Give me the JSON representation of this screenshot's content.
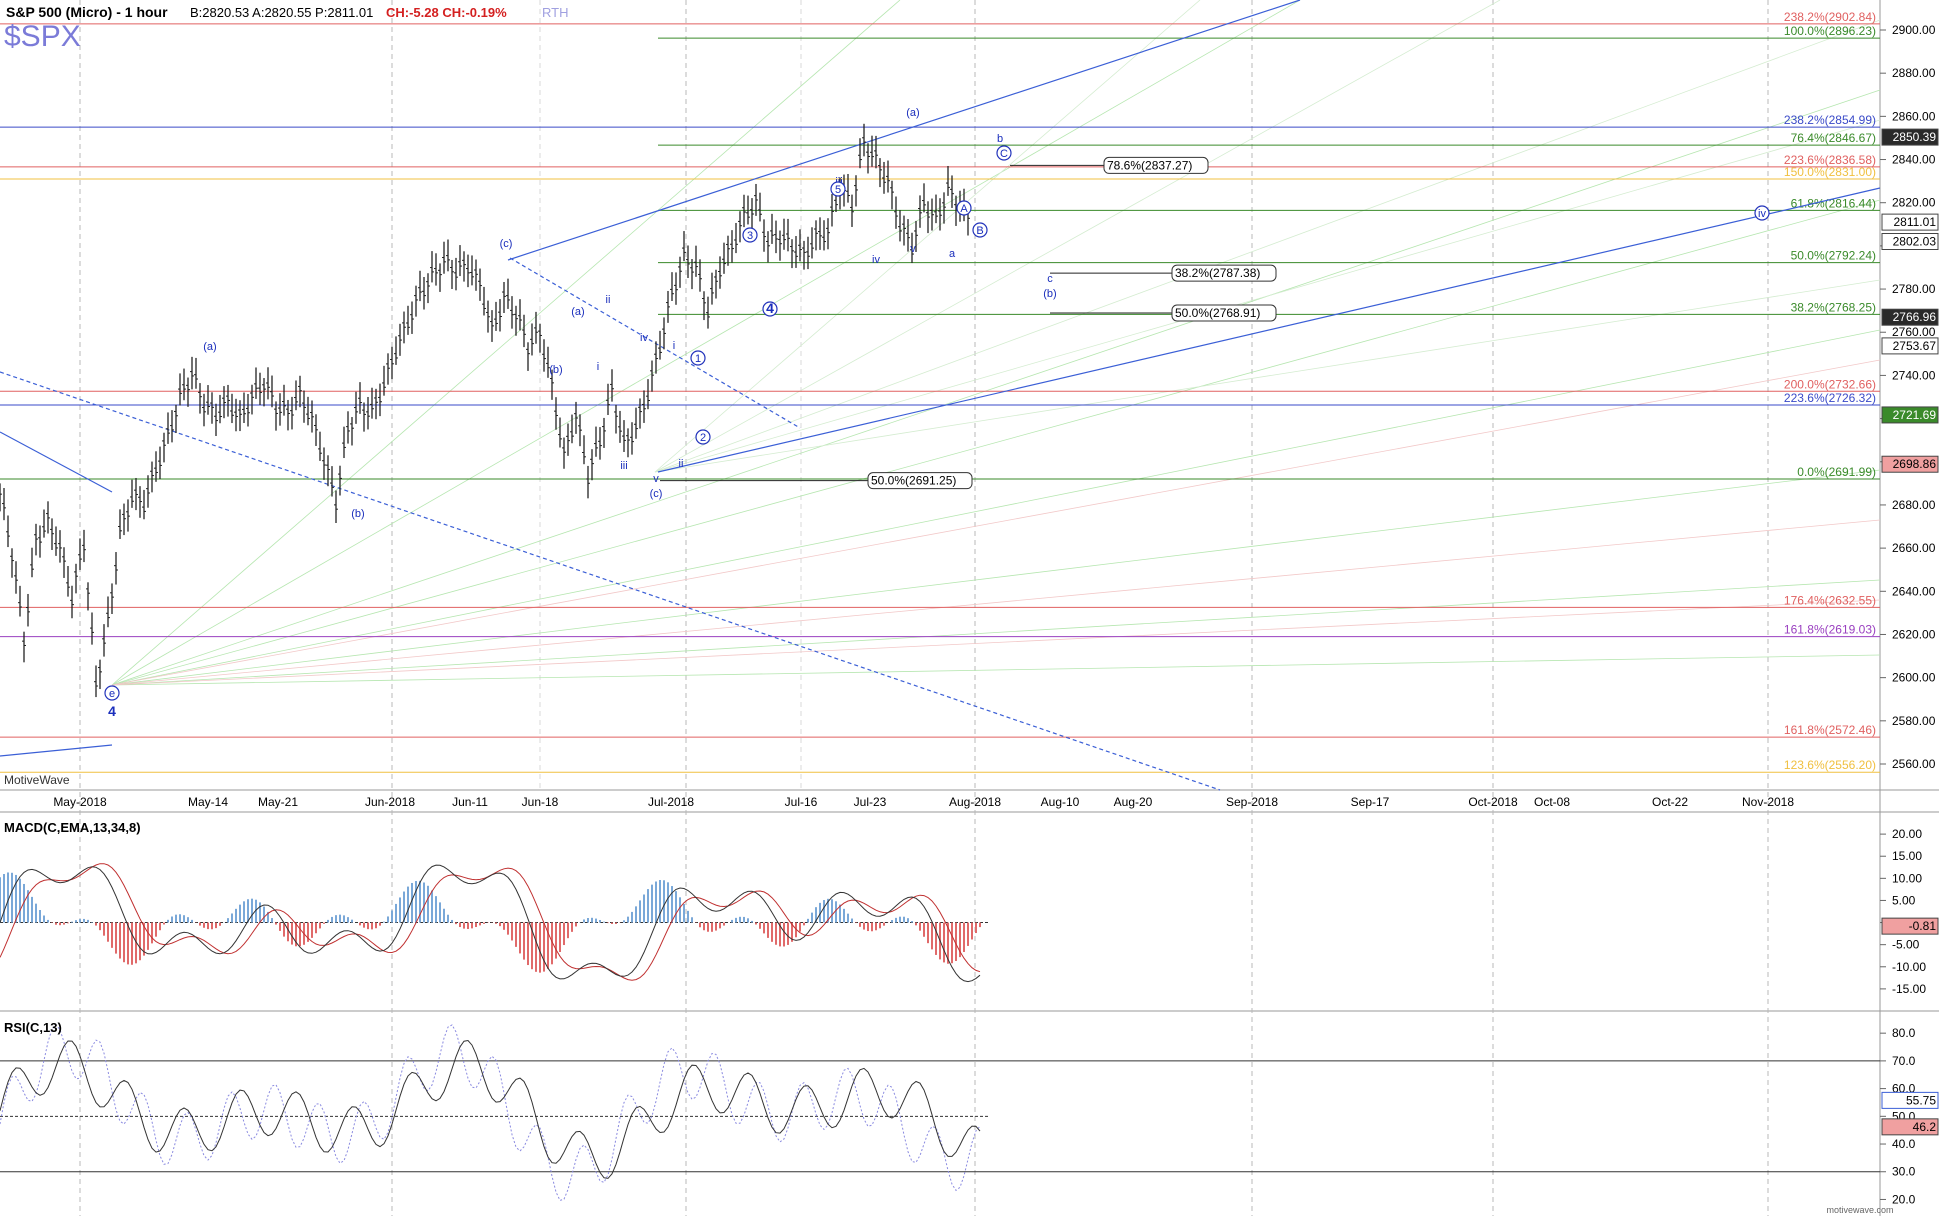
{
  "header": {
    "instrument": "S&P 500 (Micro) - 1 hour",
    "quote": "B:2820.53  A:2820.55  P:2811.01",
    "change": "CH:-5.28  CH:-0.19%",
    "session": "RTH",
    "symbol": "$SPX",
    "watermark": "MotiveWave",
    "footer_brand": "motivewave.com"
  },
  "chart_data": [
    {
      "type": "candlestick",
      "title": "S&P 500 (Micro) - 1 hour",
      "ylim": [
        2550,
        2910
      ],
      "y_ticks": [
        2560,
        2580,
        2600,
        2620,
        2640,
        2660,
        2680,
        2700,
        2720,
        2740,
        2760,
        2780,
        2800,
        2820,
        2840,
        2860,
        2880,
        2900
      ],
      "x_labels": [
        "May-2018",
        "May-14",
        "May-21",
        "Jun-2018",
        "Jun-11",
        "Jun-18",
        "Jul-2018",
        "Jul-16",
        "Jul-23",
        "Aug-2018",
        "Aug-10",
        "Aug-20",
        "Sep-2018",
        "Sep-17",
        "Oct-2018",
        "Oct-08",
        "Oct-22",
        "Nov-2018"
      ],
      "price_path": [
        [
          0,
          2686
        ],
        [
          3,
          2658
        ],
        [
          6,
          2618
        ],
        [
          9,
          2664
        ],
        [
          12,
          2672
        ],
        [
          15,
          2660
        ],
        [
          18,
          2637
        ],
        [
          21,
          2663
        ],
        [
          24,
          2597
        ],
        [
          27,
          2626
        ],
        [
          30,
          2667
        ],
        [
          33,
          2684
        ],
        [
          36,
          2681
        ],
        [
          39,
          2697
        ],
        [
          42,
          2712
        ],
        [
          45,
          2730
        ],
        [
          48,
          2741
        ],
        [
          51,
          2727
        ],
        [
          54,
          2722
        ],
        [
          57,
          2728
        ],
        [
          60,
          2720
        ],
        [
          63,
          2730
        ],
        [
          66,
          2737
        ],
        [
          69,
          2726
        ],
        [
          72,
          2723
        ],
        [
          75,
          2731
        ],
        [
          78,
          2720
        ],
        [
          81,
          2701
        ],
        [
          84,
          2682
        ],
        [
          87,
          2716
        ],
        [
          90,
          2726
        ],
        [
          93,
          2723
        ],
        [
          96,
          2736
        ],
        [
          99,
          2752
        ],
        [
          102,
          2765
        ],
        [
          105,
          2778
        ],
        [
          108,
          2786
        ],
        [
          111,
          2793
        ],
        [
          114,
          2789
        ],
        [
          117,
          2791
        ],
        [
          120,
          2782
        ],
        [
          123,
          2761
        ],
        [
          126,
          2776
        ],
        [
          129,
          2769
        ],
        [
          132,
          2754
        ],
        [
          135,
          2760
        ],
        [
          138,
          2735
        ],
        [
          141,
          2703
        ],
        [
          144,
          2722
        ],
        [
          147,
          2694
        ],
        [
          150,
          2710
        ],
        [
          153,
          2733
        ],
        [
          156,
          2708
        ],
        [
          159,
          2716
        ],
        [
          162,
          2732
        ],
        [
          165,
          2754
        ],
        [
          168,
          2778
        ],
        [
          171,
          2795
        ],
        [
          174,
          2790
        ],
        [
          177,
          2770
        ],
        [
          180,
          2790
        ],
        [
          183,
          2800
        ],
        [
          186,
          2814
        ],
        [
          189,
          2820
        ],
        [
          192,
          2802
        ],
        [
          195,
          2805
        ],
        [
          198,
          2800
        ],
        [
          201,
          2796
        ],
        [
          204,
          2804
        ],
        [
          207,
          2807
        ],
        [
          210,
          2828
        ],
        [
          213,
          2819
        ],
        [
          216,
          2848
        ],
        [
          219,
          2840
        ],
        [
          222,
          2830
        ],
        [
          225,
          2810
        ],
        [
          228,
          2800
        ],
        [
          231,
          2820
        ],
        [
          234,
          2812
        ],
        [
          237,
          2826
        ],
        [
          240,
          2818
        ],
        [
          243,
          2811
        ]
      ],
      "price_levels": [
        {
          "label": "238.2%(2902.84)",
          "value": 2902.84,
          "color": "#e06060"
        },
        {
          "label": "100.0%(2896.23)",
          "value": 2896.23,
          "color": "#3a8a2a"
        },
        {
          "label": "238.2%(2854.99)",
          "value": 2854.99,
          "color": "#3a4ac8"
        },
        {
          "label": "76.4%(2846.67)",
          "value": 2846.67,
          "color": "#3a8a2a"
        },
        {
          "label": "223.6%(2836.58)",
          "value": 2836.58,
          "color": "#e06060"
        },
        {
          "label": "150.0%(2831.00)",
          "value": 2831.0,
          "color": "#f0c040"
        },
        {
          "label": "61.8%(2816.44)",
          "value": 2816.44,
          "color": "#3a8a2a"
        },
        {
          "label": "50.0%(2792.24)",
          "value": 2792.24,
          "color": "#3a8a2a"
        },
        {
          "label": "38.2%(2768.25)",
          "value": 2768.25,
          "color": "#3a8a2a"
        },
        {
          "label": "200.0%(2732.66)",
          "value": 2732.66,
          "color": "#e06060"
        },
        {
          "label": "223.6%(2726.32)",
          "value": 2726.32,
          "color": "#3a4ac8"
        },
        {
          "label": "0.0%(2691.99)",
          "value": 2691.99,
          "color": "#3a8a2a"
        },
        {
          "label": "176.4%(2632.55)",
          "value": 2632.55,
          "color": "#e06060"
        },
        {
          "label": "161.8%(2619.03)",
          "value": 2619.03,
          "color": "#9a40c0"
        },
        {
          "label": "161.8%(2572.46)",
          "value": 2572.46,
          "color": "#e06060"
        },
        {
          "label": "123.6%(2556.20)",
          "value": 2556.2,
          "color": "#f0c040"
        }
      ],
      "right_badges": [
        {
          "label": "2850.39",
          "value": 2850.39,
          "bg": "#2a2a2a",
          "fg": "#ffffff"
        },
        {
          "label": "2811.01",
          "value": 2811.01,
          "bg": "#ffffff",
          "fg": "#000000"
        },
        {
          "label": "2802.03",
          "value": 2802.03,
          "bg": "#ffffff",
          "fg": "#000000"
        },
        {
          "label": "2766.96",
          "value": 2766.96,
          "bg": "#2a2a2a",
          "fg": "#ffffff"
        },
        {
          "label": "2753.67",
          "value": 2753.67,
          "bg": "#ffffff",
          "fg": "#000000"
        },
        {
          "label": "2721.69",
          "value": 2721.69,
          "bg": "#3a8a2a",
          "fg": "#ffffff"
        },
        {
          "label": "2698.86",
          "value": 2698.86,
          "bg": "#f0a0a0",
          "fg": "#000000"
        }
      ],
      "projection_boxes": [
        {
          "label": "78.6%(2837.27)",
          "value": 2837.27
        },
        {
          "label": "38.2%(2787.38)",
          "value": 2787.38
        },
        {
          "label": "50.0%(2768.91)",
          "value": 2768.91
        },
        {
          "label": "50.0%(2691.25)",
          "value": 2691.25
        }
      ],
      "wave_labels": [
        "e",
        "4",
        "(a)",
        "(b)",
        "i",
        "(c)",
        "(a)",
        "(b)",
        "ii",
        "iii",
        "iv",
        "v",
        "(c)",
        "ii",
        "i",
        "ii",
        "1",
        "2",
        "3",
        "4",
        "iii",
        "5",
        "iv",
        "v",
        "(a)",
        "A",
        "B",
        "a",
        "b",
        "C",
        "c",
        "(b)",
        "iv"
      ]
    },
    {
      "type": "line",
      "title": "MACD(C,EMA,13,34,8)",
      "ylim": [
        -20,
        25
      ],
      "y_ticks": [
        -15,
        -10,
        -5,
        0,
        5,
        10,
        15,
        20
      ],
      "y_tick_labels": [
        "-15.00",
        "-10.00",
        "-5.00",
        "0.00",
        "5.00",
        "10.00",
        "15.00",
        "20.00"
      ],
      "last_value": "-0.81"
    },
    {
      "type": "line",
      "title": "RSI(C,13)",
      "ylim": [
        18,
        88
      ],
      "y_ticks": [
        20,
        30,
        40,
        50,
        60,
        70,
        80
      ],
      "y_tick_labels": [
        "20.0",
        "30.0",
        "40.0",
        "50.0",
        "60.0",
        "70.0",
        "80.0"
      ],
      "overbought": 70,
      "oversold": 30,
      "last_values": [
        "55.75",
        "46.2"
      ]
    }
  ]
}
